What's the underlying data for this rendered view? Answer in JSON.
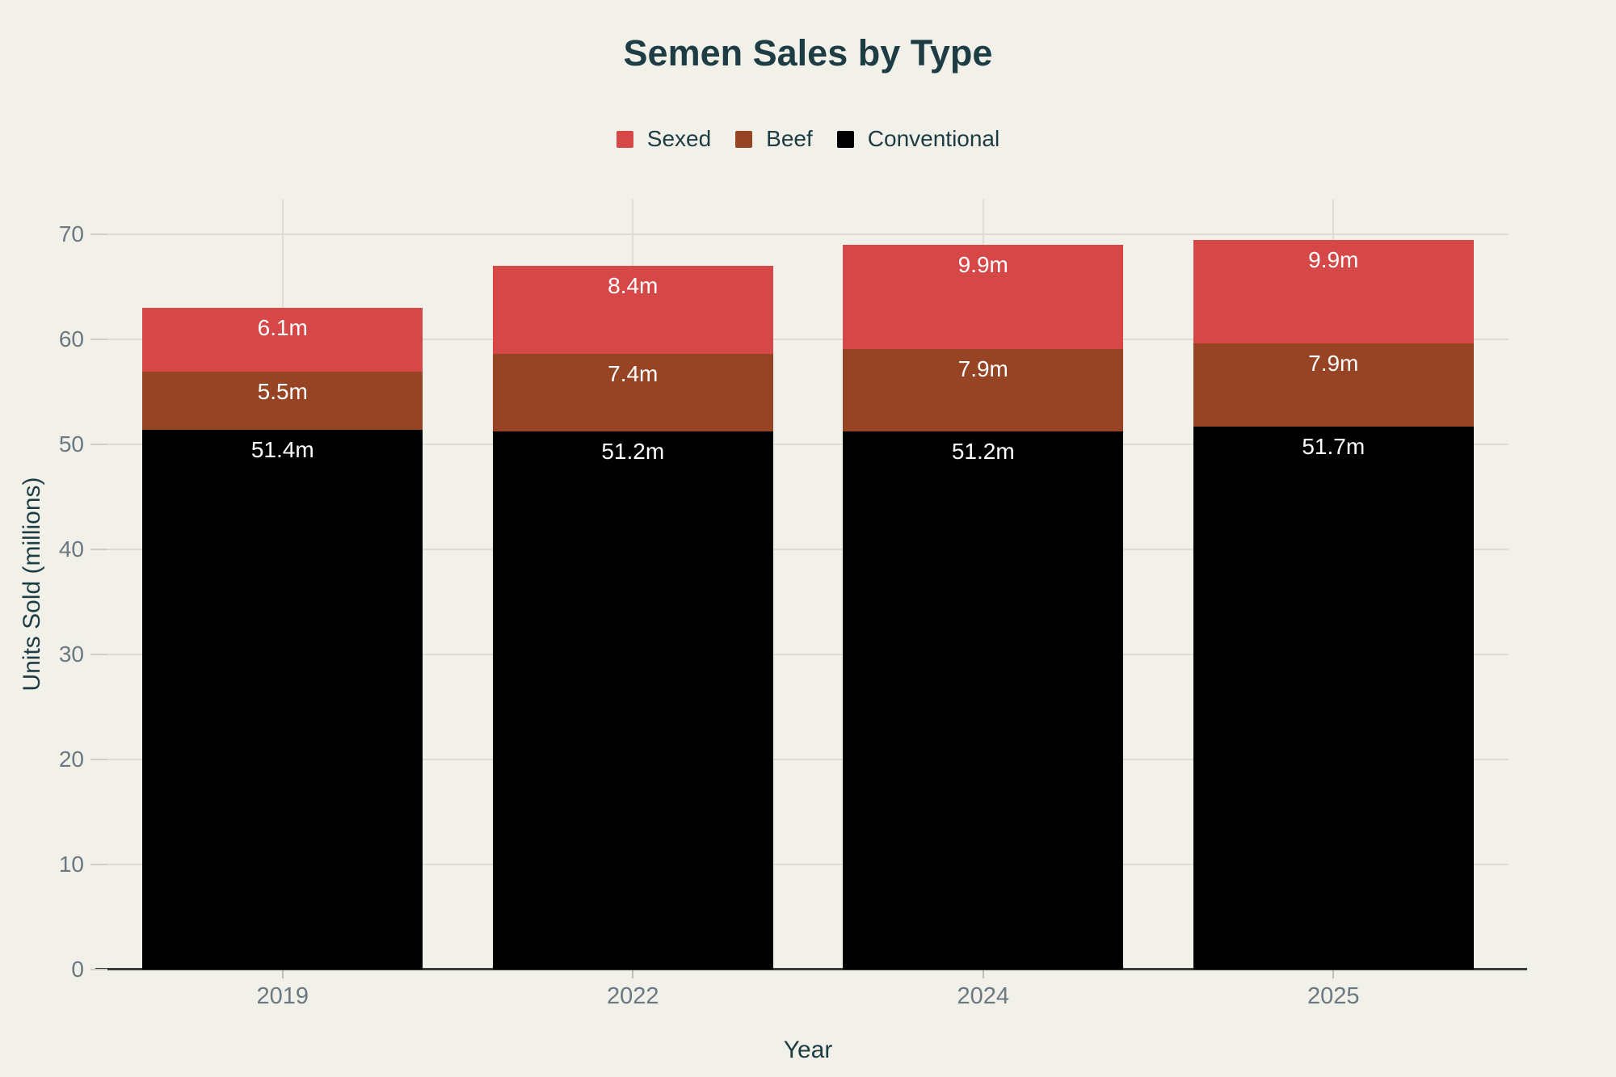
{
  "colors": {
    "background": "#f1f0e9",
    "title_text": "#1d3c44",
    "axis_text": "#6b7880",
    "grid_line": "#deddd5",
    "axis_line": "#3b3b3b",
    "bar_label_text": "#ffffff",
    "sexed": "#d64747",
    "beef": "#964423",
    "conventional": "#000000"
  },
  "chart_data": {
    "type": "bar",
    "stacked": true,
    "title": "Semen Sales by Type",
    "xlabel": "Year",
    "ylabel": "Units Sold (millions)",
    "categories": [
      "2019",
      "2022",
      "2024",
      "2025"
    ],
    "series": [
      {
        "name": "Sexed",
        "color": "#d64747",
        "values": [
          6.1,
          8.4,
          9.9,
          9.9
        ],
        "labels": [
          "6.1m",
          "8.4m",
          "9.9m",
          "9.9m"
        ]
      },
      {
        "name": "Beef",
        "color": "#964423",
        "values": [
          5.5,
          7.4,
          7.9,
          7.9
        ],
        "labels": [
          "5.5m",
          "7.4m",
          "7.9m",
          "7.9m"
        ]
      },
      {
        "name": "Conventional",
        "color": "#000000",
        "values": [
          51.4,
          51.2,
          51.2,
          51.7
        ],
        "labels": [
          "51.4m",
          "51.2m",
          "51.2m",
          "51.7m"
        ]
      }
    ],
    "totals": [
      63.0,
      67.0,
      69.0,
      69.5
    ],
    "stack_order_bottom_to_top": [
      "Conventional",
      "Beef",
      "Sexed"
    ],
    "legend_order": [
      "Sexed",
      "Beef",
      "Conventional"
    ],
    "y_ticks": [
      0,
      10,
      20,
      30,
      40,
      50,
      60,
      70
    ],
    "ylim": [
      0,
      73.3
    ],
    "grid": true,
    "legend_position": "top"
  }
}
